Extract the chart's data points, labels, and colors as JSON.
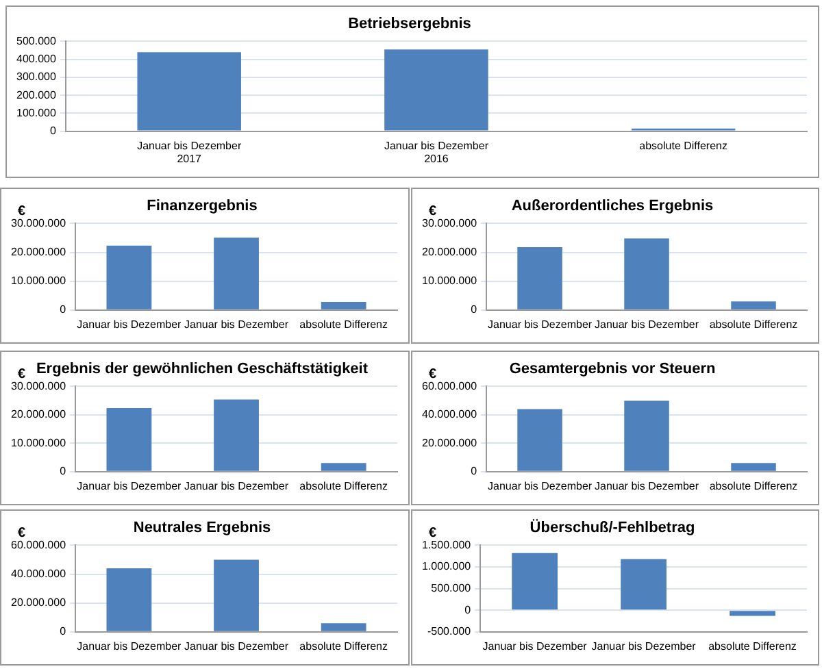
{
  "chart_data": [
    {
      "type": "bar",
      "title": "Betriebsergebnis",
      "categories": [
        "Januar bis Dezember\n2017",
        "Januar bis Dezember\n2016",
        "absolute Differenz"
      ],
      "values": [
        440000,
        455000,
        15000
      ],
      "color": "#4f81bd",
      "ylim": [
        0,
        500000
      ],
      "yticks": [
        {
          "value": 0,
          "label": "0"
        },
        {
          "value": 100000,
          "label": "100.000"
        },
        {
          "value": 200000,
          "label": "200.000"
        },
        {
          "value": 300000,
          "label": "300.000"
        },
        {
          "value": 400000,
          "label": "400.000"
        },
        {
          "value": 500000,
          "label": "500.000"
        }
      ],
      "grid": "y",
      "legend": false
    },
    {
      "type": "bar",
      "title": "Finanzergebnis",
      "ylabel": "€",
      "categories": [
        "Januar bis Dezember",
        "Januar bis Dezember",
        "absolute Differenz"
      ],
      "values": [
        22300000,
        25100000,
        2800000
      ],
      "color": "#4f81bd",
      "ylim": [
        0,
        30000000
      ],
      "yticks": [
        {
          "value": 0,
          "label": "0"
        },
        {
          "value": 10000000,
          "label": "10.000.000"
        },
        {
          "value": 20000000,
          "label": "20.000.000"
        },
        {
          "value": 30000000,
          "label": "30.000.000"
        }
      ],
      "grid": "y",
      "legend": false
    },
    {
      "type": "bar",
      "title": "Außerordentliches Ergebnis",
      "ylabel": "€",
      "categories": [
        "Januar bis Dezember",
        "Januar bis Dezember",
        "absolute Differenz"
      ],
      "values": [
        21800000,
        24800000,
        3000000
      ],
      "color": "#4f81bd",
      "ylim": [
        0,
        30000000
      ],
      "yticks": [
        {
          "value": 0,
          "label": "0"
        },
        {
          "value": 10000000,
          "label": "10.000.000"
        },
        {
          "value": 20000000,
          "label": "20.000.000"
        },
        {
          "value": 30000000,
          "label": "30.000.000"
        }
      ],
      "grid": "y",
      "legend": false
    },
    {
      "type": "bar",
      "title": "Ergebnis der gewöhnlichen Geschäftstätigkeit",
      "ylabel": "€",
      "categories": [
        "Januar bis Dezember",
        "Januar bis Dezember",
        "absolute Differenz"
      ],
      "values": [
        22400000,
        25400000,
        3000000
      ],
      "color": "#4f81bd",
      "ylim": [
        0,
        30000000
      ],
      "yticks": [
        {
          "value": 0,
          "label": "0"
        },
        {
          "value": 10000000,
          "label": "10.000.000"
        },
        {
          "value": 20000000,
          "label": "20.000.000"
        },
        {
          "value": 30000000,
          "label": "30.000.000"
        }
      ],
      "grid": "y",
      "legend": false
    },
    {
      "type": "bar",
      "title": "Gesamtergebnis vor Steuern",
      "ylabel": "€",
      "categories": [
        "Januar bis Dezember",
        "Januar bis Dezember",
        "absolute Differenz"
      ],
      "values": [
        44000000,
        50000000,
        6000000
      ],
      "color": "#4f81bd",
      "ylim": [
        0,
        60000000
      ],
      "yticks": [
        {
          "value": 0,
          "label": "0"
        },
        {
          "value": 20000000,
          "label": "20.000.000"
        },
        {
          "value": 40000000,
          "label": "40.000.000"
        },
        {
          "value": 60000000,
          "label": "60.000.000"
        }
      ],
      "grid": "y",
      "legend": false
    },
    {
      "type": "bar",
      "title": "Neutrales Ergebnis",
      "ylabel": "€",
      "categories": [
        "Januar bis Dezember",
        "Januar bis Dezember",
        "absolute Differenz"
      ],
      "values": [
        44000000,
        50000000,
        6000000
      ],
      "color": "#4f81bd",
      "ylim": [
        0,
        60000000
      ],
      "yticks": [
        {
          "value": 0,
          "label": "0"
        },
        {
          "value": 20000000,
          "label": "20.000.000"
        },
        {
          "value": 40000000,
          "label": "40.000.000"
        },
        {
          "value": 60000000,
          "label": "60.000.000"
        }
      ],
      "grid": "y",
      "legend": false
    },
    {
      "type": "bar",
      "title": "Überschuß/-Fehlbetrag",
      "ylabel": "€",
      "categories": [
        "Januar bis Dezember",
        "Januar bis Dezember",
        "absolute Differenz"
      ],
      "values": [
        1320000,
        1180000,
        -130000
      ],
      "color": "#4f81bd",
      "ylim": [
        -500000,
        1500000
      ],
      "yticks": [
        {
          "value": -500000,
          "label": "-500.000"
        },
        {
          "value": 0,
          "label": "0"
        },
        {
          "value": 500000,
          "label": "500.000"
        },
        {
          "value": 1000000,
          "label": "1.000.000"
        },
        {
          "value": 1500000,
          "label": "1.500.000"
        }
      ],
      "grid": "y",
      "legend": false
    }
  ]
}
